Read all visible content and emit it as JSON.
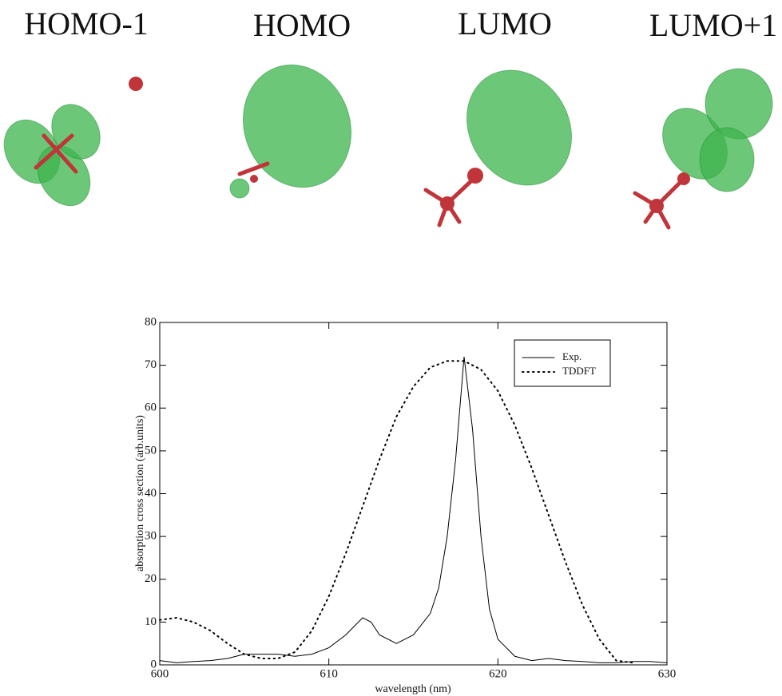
{
  "panels": [
    "HOMO-1",
    "HOMO",
    "LUMO",
    "LUMO+1"
  ],
  "chart_data": {
    "type": "line",
    "xlabel": "wavelength (nm)",
    "ylabel": "absorption cross section (arb.units)",
    "xlim": [
      600,
      630
    ],
    "ylim": [
      0,
      80
    ],
    "xticks": [
      600,
      610,
      620,
      630
    ],
    "yticks": [
      0,
      10,
      20,
      30,
      40,
      50,
      60,
      70,
      80
    ],
    "legend": "upper right",
    "series": [
      {
        "name": "Exp.",
        "color": "#000000",
        "style": "solid",
        "x": [
          600,
          601,
          602,
          603,
          604,
          605,
          606,
          607,
          608,
          609,
          610,
          611,
          612,
          612.5,
          613,
          614,
          615,
          616,
          616.5,
          617,
          617.5,
          618,
          618.5,
          619,
          619.5,
          620,
          620.5,
          621,
          622,
          623,
          624,
          625,
          626,
          627,
          628,
          629,
          630
        ],
        "values": [
          1,
          0.5,
          0.8,
          1,
          1.5,
          2.5,
          2.5,
          2.5,
          2,
          2.5,
          4,
          7,
          11,
          10,
          7,
          5,
          7,
          12,
          18,
          30,
          48,
          72,
          55,
          30,
          13,
          6,
          4,
          2,
          1,
          1.5,
          1,
          0.8,
          0.5,
          0.5,
          0.8,
          0.8,
          0.5
        ]
      },
      {
        "name": "TDDFT",
        "color": "#000000",
        "style": "dotted",
        "x": [
          600,
          601,
          602,
          603,
          604,
          605,
          606,
          607,
          608,
          609,
          610,
          611,
          612,
          613,
          614,
          615,
          616,
          617,
          618,
          619,
          620,
          621,
          622,
          623,
          624,
          625,
          626,
          627,
          628
        ],
        "values": [
          10.5,
          11,
          10,
          8,
          5,
          2.5,
          1.5,
          1.5,
          3,
          8,
          16,
          26,
          37,
          48,
          58,
          65,
          69.5,
          71,
          71,
          69,
          64,
          56,
          46,
          35,
          24,
          14,
          6,
          1,
          0.5
        ]
      }
    ]
  }
}
